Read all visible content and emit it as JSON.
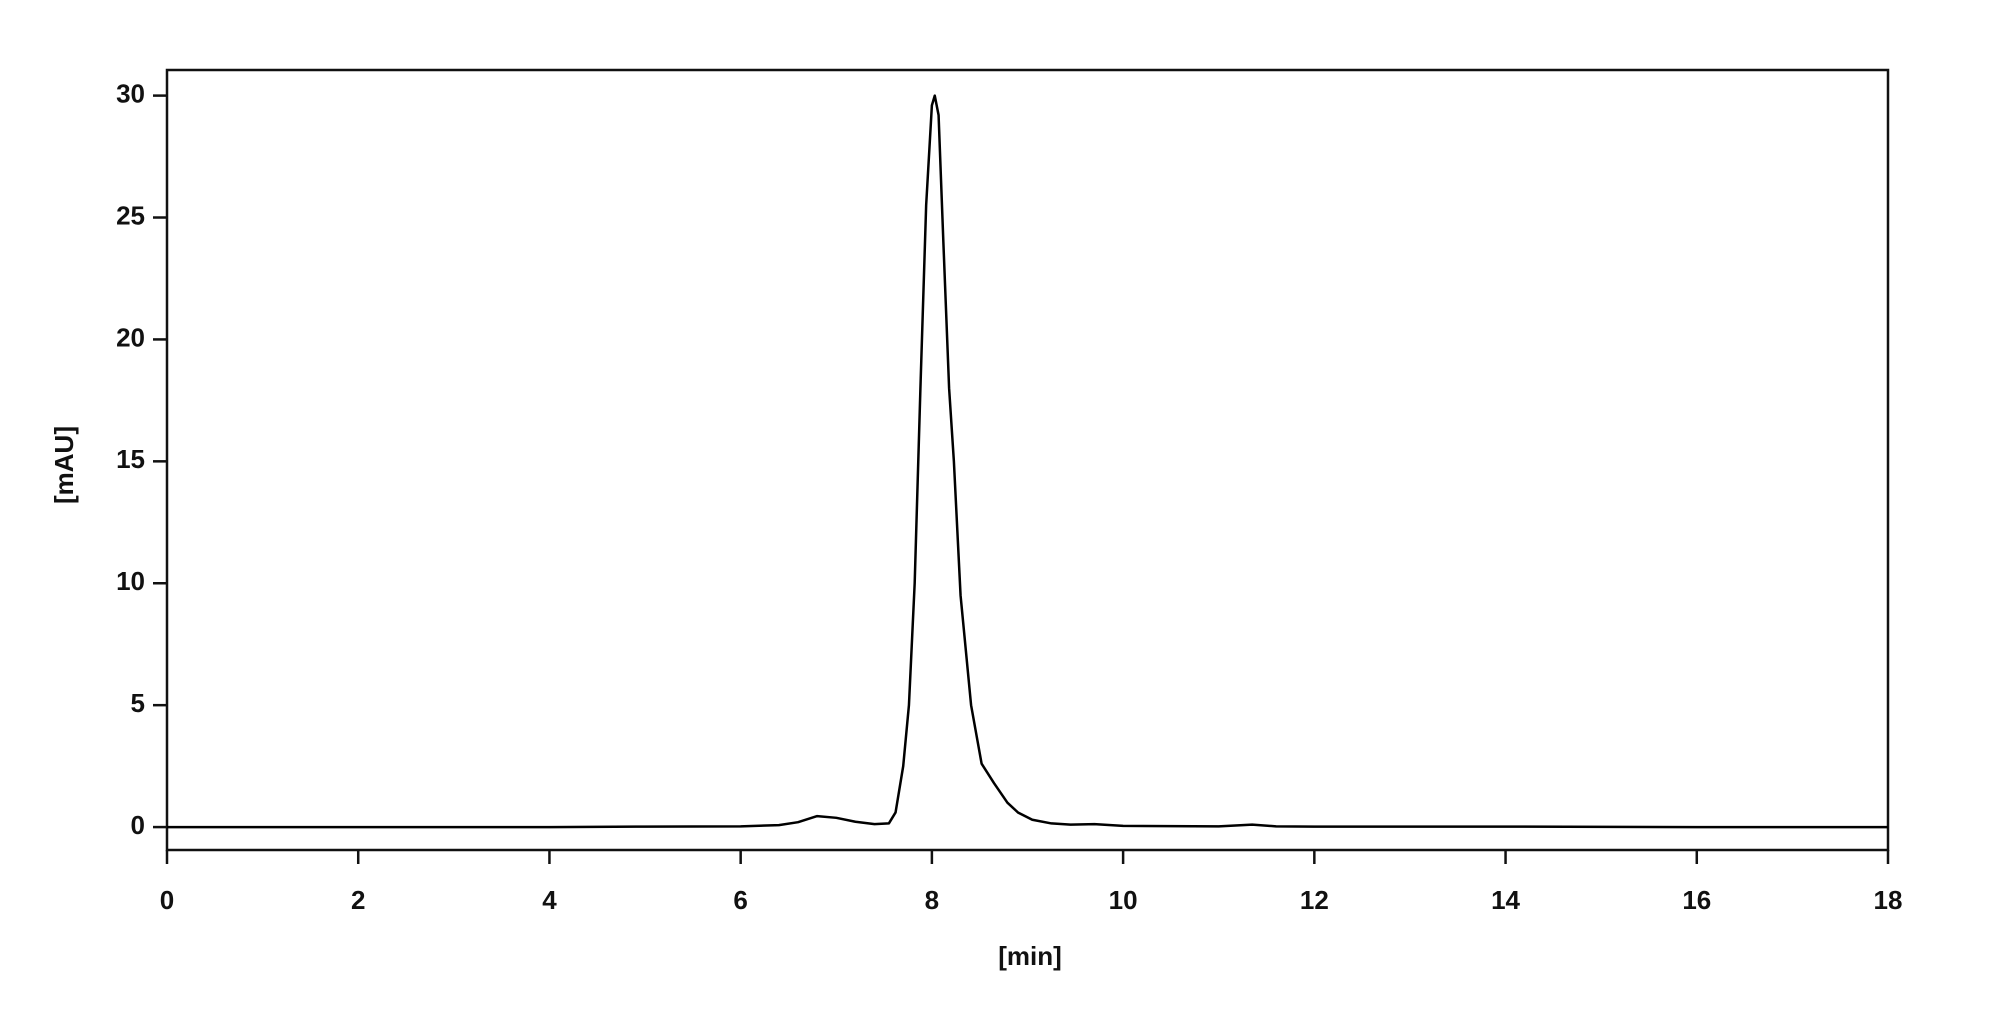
{
  "chart_data": {
    "type": "line",
    "x_label": "[min]",
    "y_label": "[mAU]",
    "x": [
      0,
      2,
      4,
      5,
      6,
      6.4,
      6.6,
      6.8,
      7.0,
      7.2,
      7.4,
      7.55,
      7.62,
      7.7,
      7.76,
      7.82,
      7.88,
      7.94,
      8.0,
      8.03,
      8.07,
      8.12,
      8.18,
      8.23,
      8.3,
      8.41,
      8.52,
      8.65,
      8.79,
      8.9,
      9.05,
      9.25,
      9.45,
      9.7,
      10.0,
      11.0,
      11.35,
      11.6,
      12,
      14,
      16,
      18
    ],
    "values": [
      0,
      0,
      0,
      0.02,
      0.03,
      0.08,
      0.2,
      0.45,
      0.38,
      0.22,
      0.12,
      0.15,
      0.6,
      2.5,
      5,
      10,
      18,
      25.5,
      29.6,
      30,
      29.2,
      24,
      18,
      15,
      9.5,
      5,
      2.6,
      1.8,
      1,
      0.6,
      0.3,
      0.15,
      0.1,
      0.12,
      0.05,
      0.03,
      0.1,
      0.03,
      0.02,
      0.02,
      0,
      0
    ],
    "color": "#000000",
    "xlim": [
      0,
      18
    ],
    "xticks": [
      0,
      2,
      4,
      6,
      8,
      10,
      12,
      14,
      16,
      18
    ],
    "ylim": [
      -0.94,
      31.05
    ],
    "yticks": [
      0,
      5,
      10,
      15,
      20,
      25,
      30
    ],
    "grid": false
  }
}
